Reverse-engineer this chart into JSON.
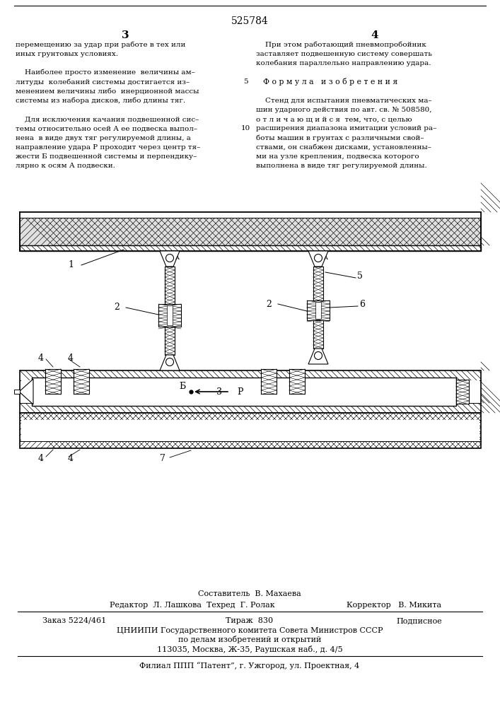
{
  "patent_number": "525784",
  "page_col_left": "3",
  "page_col_right": "4",
  "footer_line1": "Составитель  В. Махаева",
  "footer_line2_left": "Редактор  Л. Лашкова  Техред  Г. Ролак",
  "footer_line2_right": "Корректор   В. Микита",
  "footer_line3_left": "Заказ 5224/461",
  "footer_line3_mid": "Тираж  830",
  "footer_line3_right": "Подписное",
  "footer_line4": "ЦНИИПИ Государственного комитета Совета Министров СССР",
  "footer_line5": "по делам изобретений и открытий",
  "footer_line6": "113035, Москва, Ж-35, Раушская наб., д. 4/5",
  "footer_line7": "Филиал ППП “Патент”, г. Ужгород, ул. Проектная, 4",
  "bg_color": "#ffffff",
  "text_color": "#000000",
  "left_col_lines": [
    "перемещению за удар при работе в тех или",
    "иных грунтовых условиях.",
    "",
    "    Наиболее просто изменение  величины ам–",
    "литуды  колебаний системы достигается из–",
    "менением величины либо  инерционной массы",
    "системы из набора дисков, либо длины тяг.",
    "",
    "    Для исключения качания подвешенной сис–",
    "темы относительно осей А ее подвеска выпол–",
    "нена  в виде двух тяг регулируемой длины, а",
    "направление удара Р проходит через центр тя–",
    "жести Б подвешенной системы и перпендику–",
    "лярно к осям А подвески."
  ],
  "right_col_lines": [
    "    При этом работающий пневмопробойник",
    "заставляет подвешенную систему совершать",
    "колебания параллельно направлению удара.",
    "",
    "Ф о р м у л а   и з о б р е т е н и я",
    "",
    "    Стенд для испытания пневматических ма–",
    "шин ударного действия по авт. св. № 508580,",
    "о т л и ч а ю щ и й с я  тем, что, с целью",
    "расширения диапазона имитации условий ра–",
    "боты машин в грунтах с различными свой–",
    "ствами, он снабжен дисками, установленны–",
    "ми на узле крепления, подвеска которого",
    "выполнена в виде тяг регулируемой длины."
  ]
}
